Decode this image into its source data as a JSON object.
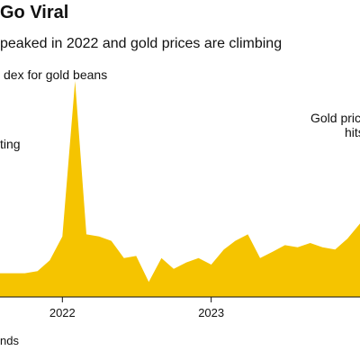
{
  "header": {
    "title": "Go Viral",
    "subtitle": "peaked in 2022 and gold prices are climbing"
  },
  "annotations": {
    "index_label": "dex for gold beans",
    "left_label": "ting",
    "right_label_line1": "Gold pric",
    "right_label_line2": "hits"
  },
  "footer": {
    "source": "nds"
  },
  "chart_data": {
    "type": "area",
    "title": "Go Viral",
    "subtitle": "peaked in 2022 and gold prices are climbing",
    "color": "#f5c400",
    "x_tick_labels": [
      "2022",
      "2023"
    ],
    "x_ticks": [
      "2022-01-01",
      "2023-01-01"
    ],
    "ylim": [
      0,
      100
    ],
    "grid": false,
    "legend": "none",
    "series": [
      {
        "x": [
          "2021-08-01",
          "2021-09-01",
          "2021-10-01",
          "2021-11-01",
          "2021-12-01",
          "2022-01-01",
          "2022-02-01",
          "2022-03-01",
          "2022-04-01",
          "2022-05-01",
          "2022-06-01",
          "2022-07-01",
          "2022-08-01",
          "2022-09-01",
          "2022-10-01",
          "2022-11-01",
          "2022-12-01",
          "2023-01-01",
          "2023-02-01",
          "2023-03-01",
          "2023-04-01",
          "2023-05-01",
          "2023-06-01",
          "2023-07-01",
          "2023-08-01",
          "2023-09-01",
          "2023-10-01",
          "2023-11-01",
          "2023-12-01",
          "2024-01-01"
        ],
        "values": [
          11,
          11,
          11,
          12,
          17,
          28,
          100,
          29,
          28,
          26,
          18,
          19,
          7,
          18,
          13,
          16,
          18,
          15,
          22,
          26,
          29,
          18,
          21,
          24,
          23,
          25,
          23,
          22,
          27,
          34
        ]
      }
    ]
  }
}
